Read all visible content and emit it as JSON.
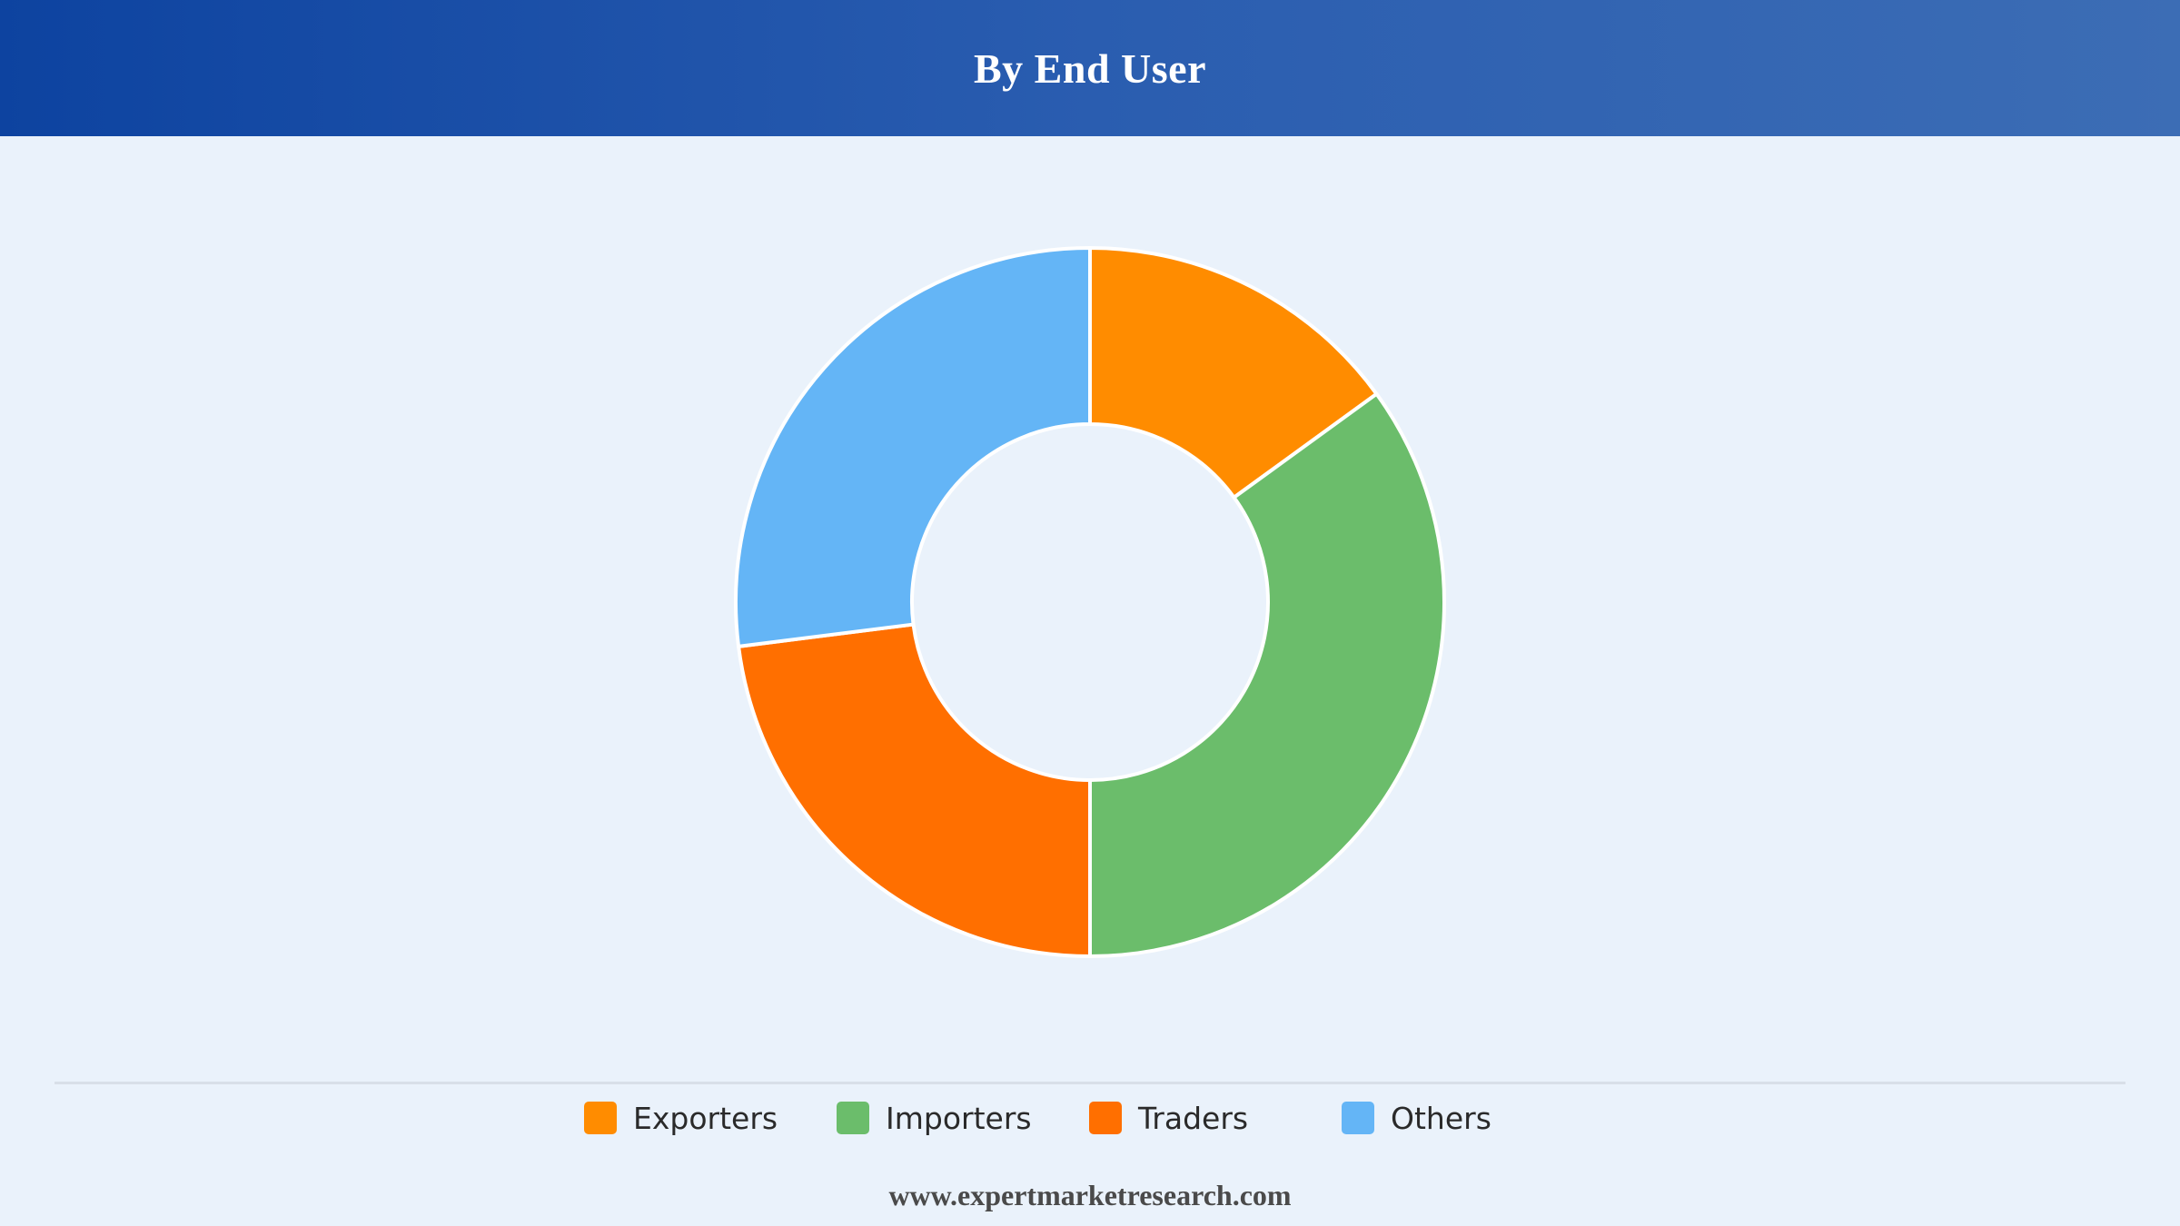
{
  "header": {
    "title": "By End User",
    "background_colors": [
      "#0d43a0",
      "#3c6db5"
    ]
  },
  "chart_data": {
    "type": "pie",
    "variant": "donut",
    "series": [
      {
        "name": "Exporters",
        "value": 15,
        "color": "#ff8c00"
      },
      {
        "name": "Importers",
        "value": 35,
        "color": "#6bbd6b"
      },
      {
        "name": "Traders",
        "value": 23,
        "color": "#ff6f00"
      },
      {
        "name": "Others",
        "value": 27,
        "color": "#64b5f6"
      }
    ],
    "legend_position": "bottom",
    "start_angle": "top, clockwise"
  },
  "legend": {
    "items": [
      {
        "label": "Exporters",
        "color": "#ff8c00"
      },
      {
        "label": "Importers",
        "color": "#6bbd6b"
      },
      {
        "label": "Traders",
        "color": "#ff6f00"
      },
      {
        "label": "Others",
        "color": "#64b5f6"
      }
    ]
  },
  "footer": {
    "text": "www.expertmarketresearch.com"
  }
}
